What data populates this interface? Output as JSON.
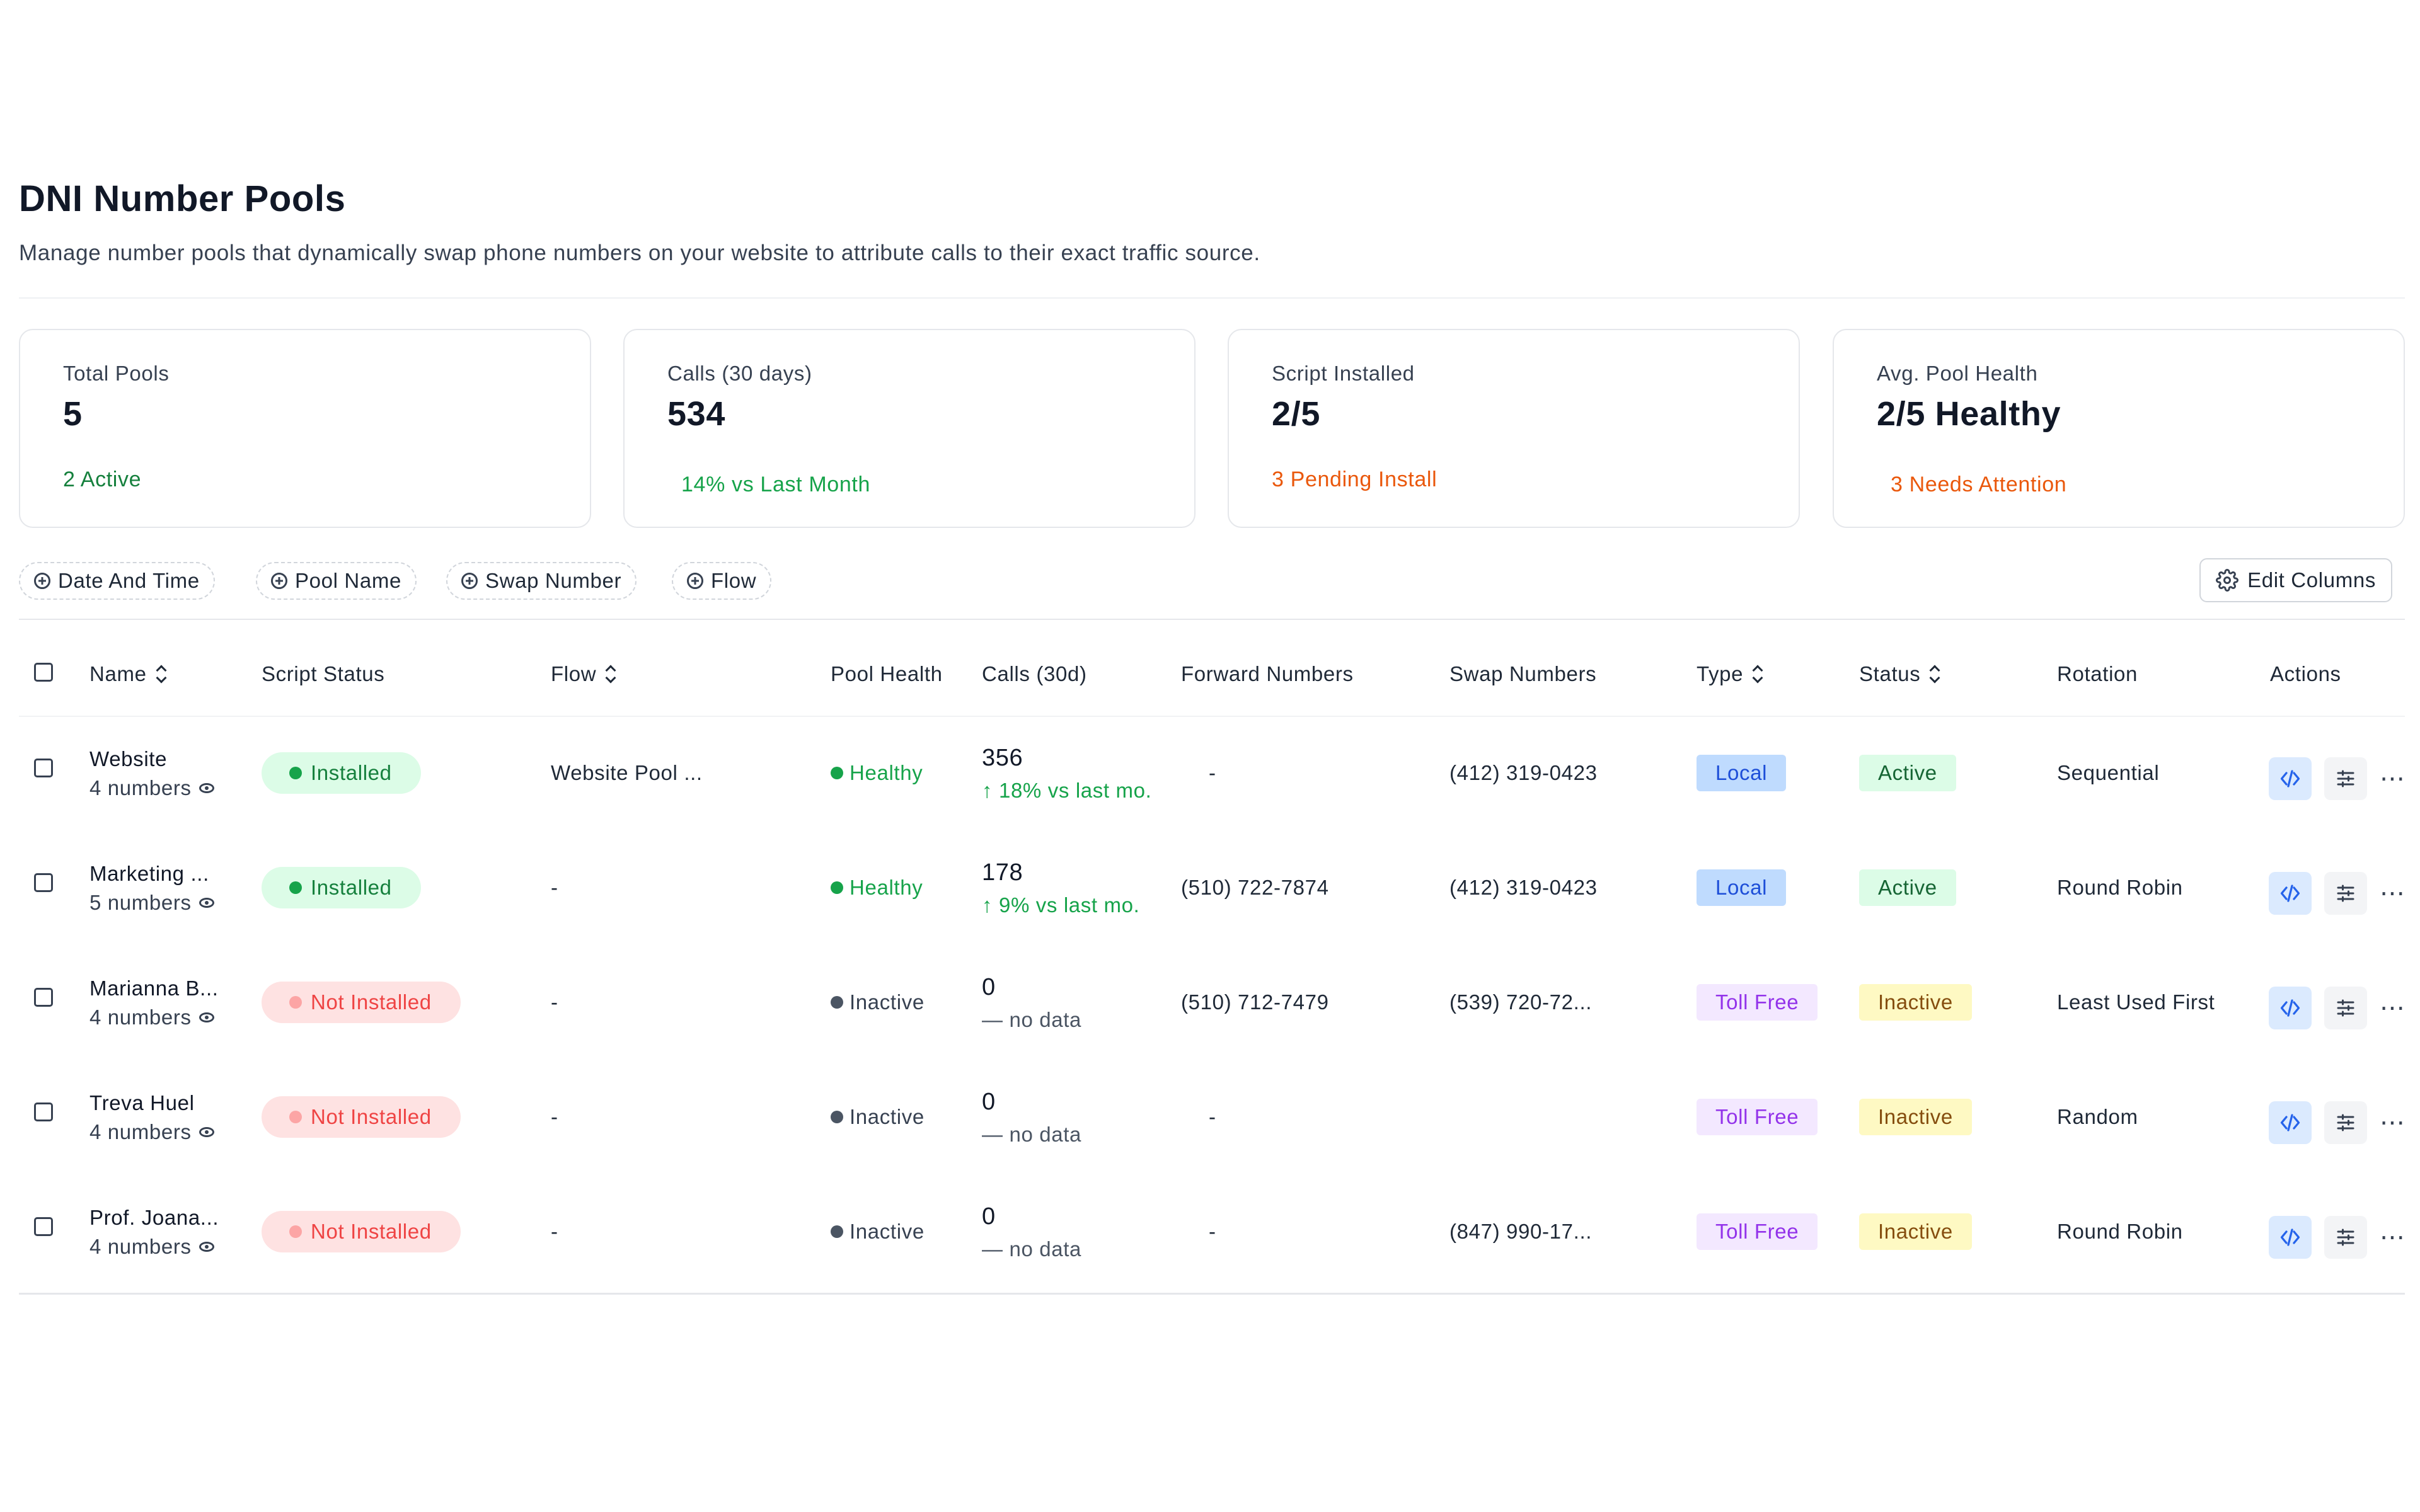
{
  "page": {
    "title": "DNI Number Pools",
    "subtitle": "Manage number pools that dynamically swap phone numbers on your website to attribute calls to their exact traffic source."
  },
  "cards": [
    {
      "label": "Total Pools",
      "value": "5",
      "sub": "2 Active",
      "sub_color": "#15803d"
    },
    {
      "label": "Calls (30 days)",
      "value": "534",
      "sub": "14% vs Last Month",
      "sub_color": "#16a34a"
    },
    {
      "label": "Script Installed",
      "value": "2/5",
      "sub": "3 Pending Install",
      "sub_color": "#ea580c"
    },
    {
      "label": "Avg. Pool Health",
      "value": "2/5 Healthy",
      "sub": "3 Needs Attention",
      "sub_color": "#ea580c"
    }
  ],
  "filters": [
    "Date And Time",
    "Pool Name",
    "Swap Number",
    "Flow"
  ],
  "edit_columns_label": "Edit Columns",
  "columns": {
    "name": "Name",
    "script_status": "Script Status",
    "flow": "Flow",
    "pool_health": "Pool Health",
    "calls": "Calls (30d)",
    "forward_numbers": "Forward Numbers",
    "swap_numbers": "Swap Numbers",
    "type": "Type",
    "status": "Status",
    "rotation": "Rotation",
    "actions": "Actions"
  },
  "rows": [
    {
      "name": "Website",
      "numbers": "4 numbers",
      "script_status": "Installed",
      "flow": "Website Pool ...",
      "pool_health": "Healthy",
      "calls": "356",
      "calls_trend": "↑ 18% vs last mo.",
      "forward": "-",
      "swap": "(412) 319-0423",
      "type": "Local",
      "status": "Active",
      "rotation": "Sequential"
    },
    {
      "name": "Marketing ...",
      "numbers": "5 numbers",
      "script_status": "Installed",
      "flow": "-",
      "pool_health": "Healthy",
      "calls": "178",
      "calls_trend": "↑ 9% vs last mo.",
      "forward": "(510) 722-7874",
      "swap": "(412) 319-0423",
      "type": "Local",
      "status": "Active",
      "rotation": "Round Robin"
    },
    {
      "name": "Marianna B...",
      "numbers": "4 numbers",
      "script_status": "Not Installed",
      "flow": "-",
      "pool_health": "Inactive",
      "calls": "0",
      "calls_trend": "— no data",
      "forward": "(510) 712-7479",
      "swap": "(539) 720-72...",
      "type": "Toll Free",
      "status": "Inactive",
      "rotation": "Least Used First"
    },
    {
      "name": "Treva Huel",
      "numbers": "4 numbers",
      "script_status": "Not Installed",
      "flow": "-",
      "pool_health": "Inactive",
      "calls": "0",
      "calls_trend": "— no data",
      "forward": "-",
      "swap": "",
      "type": "Toll Free",
      "status": "Inactive",
      "rotation": "Random"
    },
    {
      "name": "Prof. Joana...",
      "numbers": "4 numbers",
      "script_status": "Not Installed",
      "flow": "-",
      "pool_health": "Inactive",
      "calls": "0",
      "calls_trend": "— no data",
      "forward": "-",
      "swap": "(847) 990-17...",
      "type": "Toll Free",
      "status": "Inactive",
      "rotation": "Round Robin"
    }
  ],
  "icons": {
    "filter_chip": "plus-circle-icon",
    "edit_columns": "gear-icon",
    "pool_numbers": "eye-icon",
    "action_code": "code-icon",
    "action_settings": "sliders-icon",
    "action_more": "more-horizontal-icon"
  }
}
